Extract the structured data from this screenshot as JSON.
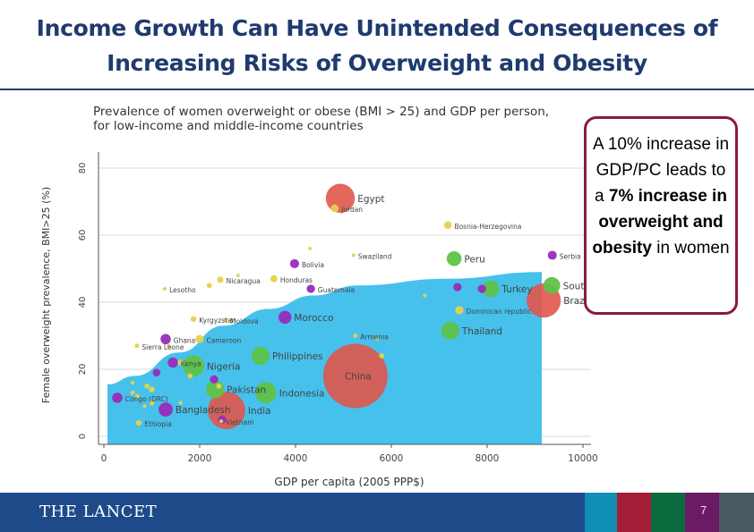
{
  "slide": {
    "title_line1": "Income Growth Can Have Unintended Consequences of",
    "title_line2": "Increasing Risks of Overweight and Obesity",
    "callout": {
      "part1": "A 10% increase in GDP/PC leads to a ",
      "bold1": "7% increase in overweight and obesity",
      "part2": " in women"
    },
    "footer": {
      "logo": "THE LANCET",
      "page_number": "7"
    },
    "colors": {
      "title": "#1f3a6e",
      "callout_border": "#8a1a3a",
      "footer_blue": "#1e4a8a",
      "footer_teal": "#0e8fb3",
      "footer_red": "#a31d37",
      "footer_green": "#0b6a3e",
      "footer_purple": "#6c1a64",
      "footer_gray": "#4a5a62"
    }
  },
  "chart_data": {
    "type": "scatter",
    "title_line1": "Prevalence of women overweight or obese (BMI > 25) and GDP per person,",
    "title_line2": "for low-income and middle-income countries",
    "xlabel": "GDP per capita (2005 PPP$)",
    "ylabel": "Female overweight prevalence, BMI>25 (%)",
    "xlim": [
      0,
      10000
    ],
    "ylim": [
      0,
      80
    ],
    "xticks": [
      "0",
      "2000",
      "4000",
      "6000",
      "8000",
      "10000"
    ],
    "yticks": [
      "0",
      "20",
      "40",
      "60",
      "80"
    ],
    "grid": true,
    "fit_area": {
      "color": "#45c1ec",
      "x": [
        75,
        640,
        1570,
        2500,
        3440,
        4370,
        5300,
        7160,
        9140
      ],
      "y": [
        15.5,
        18,
        25,
        33,
        38,
        42,
        45,
        47,
        49
      ]
    },
    "group_colors": {
      "red": "#e0574a",
      "green": "#5fc247",
      "purple": "#9a2bbd",
      "yellow": "#e6d24c"
    },
    "points": [
      {
        "label": "Egypt",
        "x": 4935,
        "y": 71,
        "size": 4.5,
        "group": "red"
      },
      {
        "label": "Jordan",
        "x": 4820,
        "y": 68,
        "size": 1.2,
        "group": "yellow"
      },
      {
        "label": "Bosnia-Herzegovina",
        "x": 7180,
        "y": 63,
        "size": 1.2,
        "group": "yellow"
      },
      {
        "label": "Peru",
        "x": 7310,
        "y": 53,
        "size": 2.3,
        "group": "green"
      },
      {
        "label": "Serbia",
        "x": 9360,
        "y": 54,
        "size": 1.4,
        "group": "purple"
      },
      {
        "label": "Turkey",
        "x": 8075,
        "y": 44,
        "size": 2.6,
        "group": "green"
      },
      {
        "label": "",
        "x": 7890,
        "y": 44,
        "size": 1.3,
        "group": "purple"
      },
      {
        "label": "",
        "x": 7380,
        "y": 44.5,
        "size": 1.3,
        "group": "purple"
      },
      {
        "label": "South Africa",
        "x": 9350,
        "y": 45,
        "size": 2.6,
        "group": "green"
      },
      {
        "label": "Brazil",
        "x": 9180,
        "y": 40.5,
        "size": 5.3,
        "group": "red"
      },
      {
        "label": "Dominican republic",
        "x": 7420,
        "y": 37.6,
        "size": 1.3,
        "group": "yellow"
      },
      {
        "label": "Thailand",
        "x": 7230,
        "y": 31.5,
        "size": 2.8,
        "group": "green"
      },
      {
        "label": "Armenia",
        "x": 5250,
        "y": 30,
        "size": 0.7,
        "group": "yellow"
      },
      {
        "label": "China",
        "x": 5250,
        "y": 18,
        "size": 10,
        "group": "red"
      },
      {
        "label": "Indonesia",
        "x": 3380,
        "y": 13,
        "size": 3.3,
        "group": "green"
      },
      {
        "label": "Philippines",
        "x": 3270,
        "y": 24,
        "size": 2.8,
        "group": "green"
      },
      {
        "label": "India",
        "x": 2560,
        "y": 7.7,
        "size": 5.8,
        "group": "red"
      },
      {
        "label": "",
        "x": 2470,
        "y": 5,
        "size": 1.3,
        "group": "purple"
      },
      {
        "label": "Pakistan",
        "x": 2320,
        "y": 14,
        "size": 2.8,
        "group": "green"
      },
      {
        "label": "Nigeria",
        "x": 1870,
        "y": 21,
        "size": 3.3,
        "group": "green"
      },
      {
        "label": "Kenya",
        "x": 1440,
        "y": 22,
        "size": 1.6,
        "group": "purple"
      },
      {
        "label": "Ghana",
        "x": 1290,
        "y": 29,
        "size": 1.6,
        "group": "purple"
      },
      {
        "label": "Sierra Leone",
        "x": 690,
        "y": 27,
        "size": 0.7,
        "group": "yellow"
      },
      {
        "label": "Bangladesh",
        "x": 1290,
        "y": 8,
        "size": 2.2,
        "group": "purple"
      },
      {
        "label": "Congo (DRC)",
        "x": 280,
        "y": 11.5,
        "size": 1.6,
        "group": "purple"
      },
      {
        "label": "Ethiopia",
        "x": 730,
        "y": 4,
        "size": 0.9,
        "group": "yellow"
      },
      {
        "label": "Vietnam",
        "x": 2450,
        "y": 4.5,
        "size": 0.6,
        "group": "yellow"
      },
      {
        "label": "Morocco",
        "x": 3780,
        "y": 35.5,
        "size": 2,
        "group": "purple"
      },
      {
        "label": "Moldova",
        "x": 2540,
        "y": 34.7,
        "size": 0.6,
        "group": "yellow"
      },
      {
        "label": "Kyrgyzstan",
        "x": 1870,
        "y": 35,
        "size": 0.9,
        "group": "yellow"
      },
      {
        "label": "Honduras",
        "x": 3550,
        "y": 47,
        "size": 1.1,
        "group": "yellow"
      },
      {
        "label": "Guatemala",
        "x": 4320,
        "y": 44,
        "size": 1.3,
        "group": "purple"
      },
      {
        "label": "Bolivia",
        "x": 3980,
        "y": 51.5,
        "size": 1.4,
        "group": "purple"
      },
      {
        "label": "Nicaragua",
        "x": 2430,
        "y": 46.7,
        "size": 1.0,
        "group": "yellow"
      },
      {
        "label": "Lesotho",
        "x": 1270,
        "y": 44,
        "size": 0.6,
        "group": "yellow"
      },
      {
        "label": "Swaziland",
        "x": 5210,
        "y": 54,
        "size": 0.5,
        "group": "yellow"
      },
      {
        "label": "Cameroon",
        "x": 2000,
        "y": 29,
        "size": 1.3,
        "group": "yellow"
      },
      {
        "label": "",
        "x": 1600,
        "y": 22,
        "size": 0.9,
        "group": "yellow"
      },
      {
        "label": "",
        "x": 1100,
        "y": 19,
        "size": 1.2,
        "group": "purple"
      },
      {
        "label": "",
        "x": 2300,
        "y": 17,
        "size": 1.3,
        "group": "purple"
      },
      {
        "label": "",
        "x": 900,
        "y": 15,
        "size": 0.8,
        "group": "yellow"
      },
      {
        "label": "",
        "x": 1000,
        "y": 14,
        "size": 0.9,
        "group": "yellow"
      },
      {
        "label": "",
        "x": 1800,
        "y": 18,
        "size": 0.8,
        "group": "yellow"
      },
      {
        "label": "",
        "x": 600,
        "y": 13,
        "size": 0.7,
        "group": "yellow"
      },
      {
        "label": "",
        "x": 700,
        "y": 12,
        "size": 0.7,
        "group": "yellow"
      },
      {
        "label": "",
        "x": 1000,
        "y": 10,
        "size": 0.8,
        "group": "yellow"
      },
      {
        "label": "",
        "x": 1600,
        "y": 10,
        "size": 0.6,
        "group": "yellow"
      },
      {
        "label": "",
        "x": 850,
        "y": 9,
        "size": 0.6,
        "group": "yellow"
      },
      {
        "label": "",
        "x": 600,
        "y": 16,
        "size": 0.6,
        "group": "yellow"
      },
      {
        "label": "",
        "x": 2200,
        "y": 45,
        "size": 0.8,
        "group": "yellow"
      },
      {
        "label": "",
        "x": 2800,
        "y": 48,
        "size": 0.4,
        "group": "yellow"
      },
      {
        "label": "",
        "x": 4300,
        "y": 56,
        "size": 0.4,
        "group": "yellow"
      },
      {
        "label": "",
        "x": 5800,
        "y": 24,
        "size": 0.8,
        "group": "yellow"
      },
      {
        "label": "",
        "x": 6700,
        "y": 42,
        "size": 0.6,
        "group": "yellow"
      },
      {
        "label": "",
        "x": 5700,
        "y": 29,
        "size": 0.5,
        "group": "yellow"
      },
      {
        "label": "",
        "x": 2400,
        "y": 15,
        "size": 0.8,
        "group": "yellow"
      },
      {
        "label": "",
        "x": 1350,
        "y": 27,
        "size": 0.6,
        "group": "yellow"
      }
    ]
  }
}
